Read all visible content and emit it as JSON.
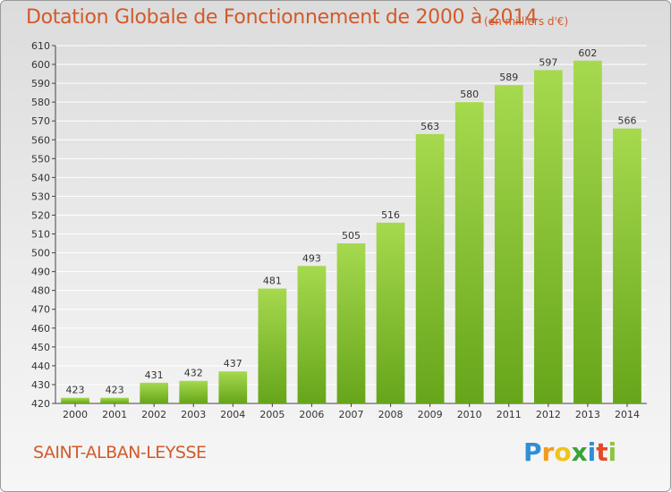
{
  "title": "Dotation Globale de Fonctionnement de 2000 à 2014",
  "unit_note": "(en milliers d'€)",
  "city": "SAINT-ALBAN-LEYSSE",
  "logo_text": "Proxiti",
  "colors": {
    "title": "#d25a2a",
    "bar_light": "#9fd44a",
    "bar_dark": "#6aaa1c",
    "grid": "#ffffff"
  },
  "chart_data": {
    "type": "bar",
    "title": "Dotation Globale de Fonctionnement de 2000 à 2014",
    "subtitle": "(en milliers d'€)",
    "xlabel": "",
    "ylabel": "",
    "categories": [
      "2000",
      "2001",
      "2002",
      "2003",
      "2004",
      "2005",
      "2006",
      "2007",
      "2008",
      "2009",
      "2010",
      "2011",
      "2012",
      "2013",
      "2014"
    ],
    "values": [
      423,
      423,
      431,
      432,
      437,
      481,
      493,
      505,
      516,
      563,
      580,
      589,
      597,
      602,
      566
    ],
    "ylim": [
      420,
      610
    ],
    "ytick_step": 10,
    "grid": true,
    "legend": "none"
  }
}
